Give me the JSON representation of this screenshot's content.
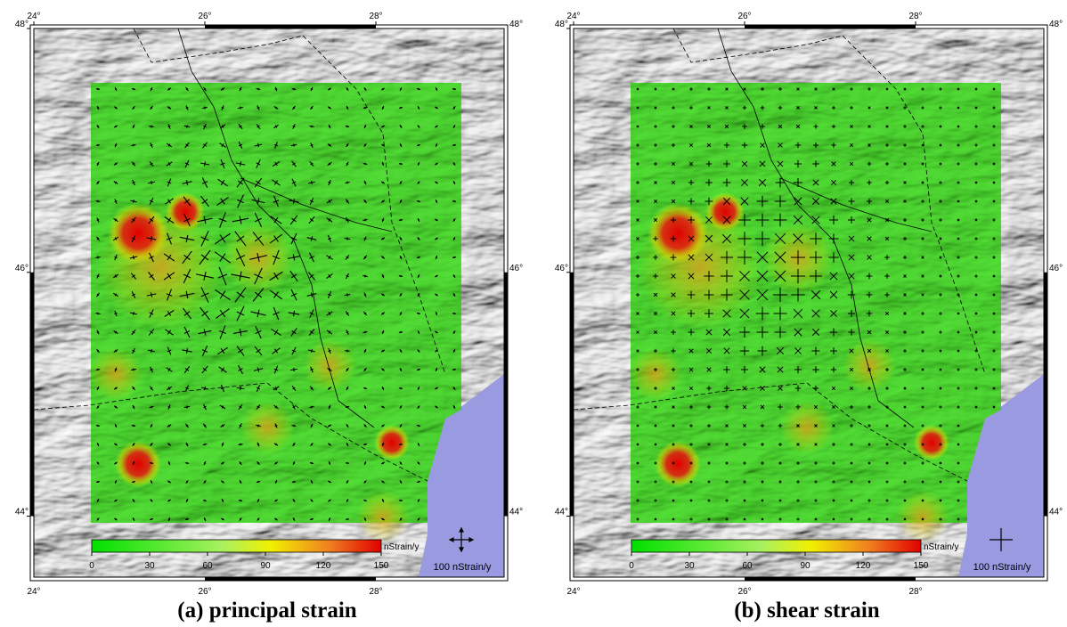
{
  "panels": [
    {
      "caption": "(a) principal strain",
      "xlim": [
        24,
        29.5
      ],
      "ylim": [
        43.5,
        48
      ],
      "xticks": [
        {
          "value": 24,
          "label": "24°"
        },
        {
          "value": 26,
          "label": "26°"
        },
        {
          "value": 28,
          "label": "28°"
        }
      ],
      "yticks": [
        {
          "value": 44,
          "label": "44°"
        },
        {
          "value": 46,
          "label": "46°"
        },
        {
          "value": 48,
          "label": "48°"
        }
      ],
      "colorbar": {
        "lim": [
          0,
          150
        ],
        "ticks": [
          0,
          30,
          60,
          90,
          120,
          150
        ],
        "unit": "nStrain/y"
      },
      "scale_label": "100 nStrain/y"
    },
    {
      "caption": "(b) shear strain",
      "xlim": [
        24,
        29.5
      ],
      "ylim": [
        43.5,
        48
      ],
      "xticks": [
        {
          "value": 24,
          "label": "24°"
        },
        {
          "value": 26,
          "label": "26°"
        },
        {
          "value": 28,
          "label": "28°"
        }
      ],
      "yticks": [
        {
          "value": 44,
          "label": "44°"
        },
        {
          "value": 46,
          "label": "46°"
        },
        {
          "value": 48,
          "label": "48°"
        }
      ],
      "colorbar": {
        "lim": [
          0,
          150
        ],
        "ticks": [
          0,
          30,
          60,
          90,
          120,
          150
        ],
        "unit": "nStrain/y"
      },
      "scale_label": "100 nStrain/y"
    }
  ]
}
